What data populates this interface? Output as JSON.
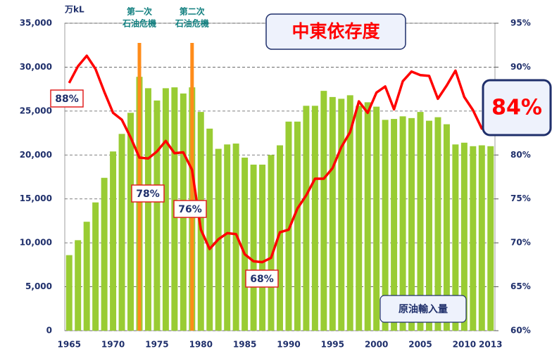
{
  "chart_data": {
    "type": "bar_line",
    "title": "中東依存度",
    "y_unit": "万kL",
    "x": [
      1965,
      1966,
      1967,
      1968,
      1969,
      1970,
      1971,
      1972,
      1973,
      1974,
      1975,
      1976,
      1977,
      1978,
      1979,
      1980,
      1981,
      1982,
      1983,
      1984,
      1985,
      1986,
      1987,
      1988,
      1989,
      1990,
      1991,
      1992,
      1993,
      1994,
      1995,
      1996,
      1997,
      1998,
      1999,
      2000,
      2001,
      2002,
      2003,
      2004,
      2005,
      2006,
      2007,
      2008,
      2009,
      2010,
      2011,
      2012,
      2013
    ],
    "xticks": [
      1965,
      1970,
      1975,
      1980,
      1985,
      1990,
      1995,
      2000,
      2005,
      2010,
      2013
    ],
    "series": [
      {
        "name": "原油輸入量",
        "color": "#99cc33",
        "axis": "y",
        "values": [
          8600,
          10300,
          12400,
          14600,
          17400,
          20400,
          22400,
          24800,
          28900,
          27600,
          26200,
          27600,
          27700,
          27000,
          27700,
          24900,
          23000,
          20700,
          21200,
          21300,
          19700,
          18900,
          18900,
          20000,
          21100,
          23800,
          23800,
          25600,
          25600,
          27300,
          26600,
          26400,
          26800,
          25600,
          26000,
          25500,
          24000,
          24100,
          24400,
          24200,
          24900,
          23900,
          24300,
          23500,
          21200,
          21400,
          21000,
          21100,
          21000
        ]
      },
      {
        "name": "中東依存度",
        "color": "#ff0000",
        "axis": "y2",
        "values": [
          88.2,
          90.1,
          91.3,
          89.8,
          87.2,
          84.8,
          84.0,
          82.0,
          79.7,
          79.6,
          80.4,
          81.6,
          80.2,
          80.3,
          78.3,
          71.5,
          69.3,
          70.4,
          71.1,
          71.0,
          68.7,
          67.9,
          67.8,
          68.3,
          71.2,
          71.5,
          73.9,
          75.4,
          77.3,
          77.3,
          78.5,
          80.9,
          82.6,
          86.1,
          84.8,
          87.1,
          87.8,
          85.2,
          88.4,
          89.5,
          89.1,
          89.0,
          86.4,
          87.9,
          89.6,
          86.6,
          85.1,
          83.0,
          83.5
        ]
      }
    ],
    "ylim": [
      0,
      35000
    ],
    "yticks": [
      0,
      {
        "value": 5000,
        "label": "5,000"
      },
      {
        "value": 10000,
        "label": "10,000"
      },
      {
        "value": 15000,
        "label": "15,000"
      },
      {
        "value": 20000,
        "label": "20,000"
      },
      {
        "value": 25000,
        "label": "25,000"
      },
      {
        "value": 30000,
        "label": "30,000"
      },
      {
        "value": 35000,
        "label": "35,000"
      }
    ],
    "y2lim": [
      60,
      95
    ],
    "y2ticks": [
      {
        "value": 60,
        "label": "60%"
      },
      {
        "value": 65,
        "label": "65%"
      },
      {
        "value": 70,
        "label": "70%"
      },
      {
        "value": 75,
        "label": "75%"
      },
      {
        "value": 80,
        "label": "80%"
      },
      {
        "value": 85,
        "label": "85%"
      },
      {
        "value": 90,
        "label": "90%"
      },
      {
        "value": 95,
        "label": "95%"
      }
    ],
    "grid": true,
    "events": [
      {
        "x": 1973,
        "label": [
          "第一次",
          "石油危機"
        ],
        "color": "#ff8c1a"
      },
      {
        "x": 1979,
        "label": [
          "第二次",
          "石油危機"
        ],
        "color": "#ff8c1a"
      }
    ],
    "annotations": [
      "88%",
      "78%",
      "76%",
      "68%",
      "84%"
    ]
  }
}
